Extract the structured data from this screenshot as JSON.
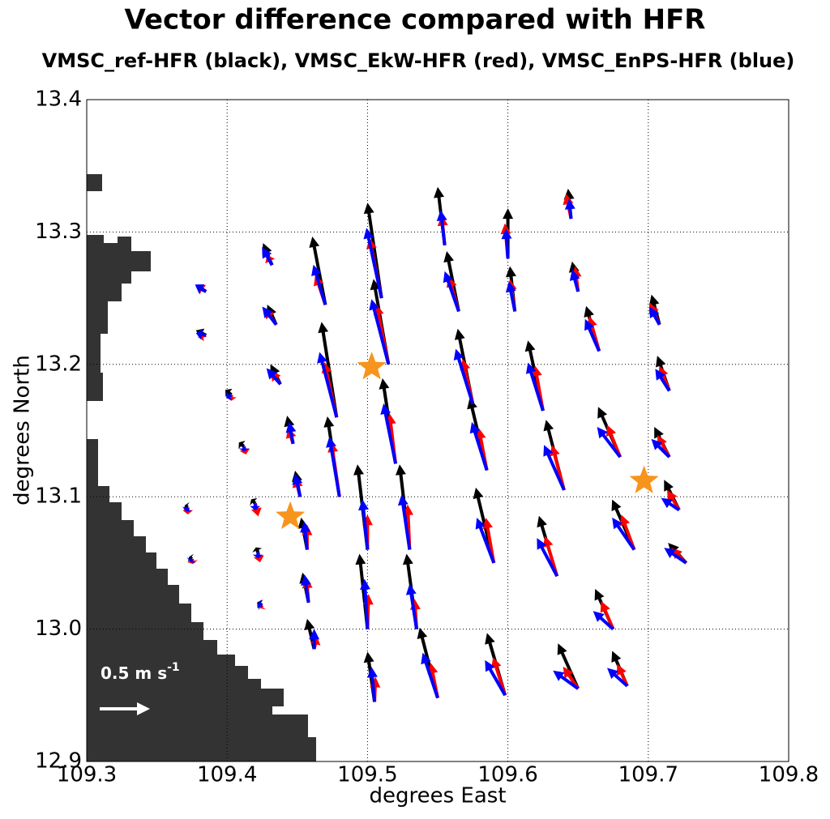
{
  "chart_data": {
    "type": "quiver",
    "title": "Vector difference compared with HFR",
    "subtitle": "VMSC_ref-HFR (black), VMSC_EkW-HFR (red), VMSC_EnPS-HFR (blue)",
    "xlabel": "degrees East",
    "ylabel": "degrees North",
    "xlim": [
      109.3,
      109.8
    ],
    "ylim": [
      12.9,
      13.4
    ],
    "xticks": [
      109.3,
      109.4,
      109.5,
      109.6,
      109.7,
      109.8
    ],
    "yticks": [
      12.9,
      {
        "value": 13,
        "label": "13.0"
      },
      13.1,
      13.2,
      13.3,
      13.4
    ],
    "grid": true,
    "reference": {
      "value": 0.5,
      "label": "0.5 m s",
      "label_sup": "-1",
      "color": "#ffffff"
    },
    "x": [
      109.385,
      109.385,
      109.403,
      109.412,
      109.372,
      109.375,
      109.42,
      109.422,
      109.425,
      109.432,
      109.435,
      109.438,
      109.447,
      109.452,
      109.457,
      109.458,
      109.462,
      109.47,
      109.478,
      109.48,
      109.5,
      109.5,
      109.505,
      109.51,
      109.515,
      109.52,
      109.53,
      109.535,
      109.55,
      109.555,
      109.565,
      109.575,
      109.585,
      109.59,
      109.598,
      109.6,
      109.605,
      109.625,
      109.64,
      109.635,
      109.65,
      109.645,
      109.65,
      109.665,
      109.68,
      109.69,
      109.675,
      109.685,
      109.708,
      109.715,
      109.715,
      109.722,
      109.727
    ],
    "y": [
      13.255,
      13.222,
      13.177,
      13.138,
      13.092,
      13.053,
      13.095,
      13.058,
      13.018,
      13.275,
      13.23,
      13.185,
      13.14,
      13.1,
      13.06,
      13.02,
      12.985,
      13.245,
      13.16,
      13.1,
      13.06,
      13.0,
      12.945,
      13.25,
      13.2,
      13.125,
      13.06,
      13.0,
      12.948,
      13.29,
      13.24,
      13.17,
      13.12,
      13.05,
      12.95,
      13.28,
      13.24,
      13.165,
      13.105,
      13.04,
      12.955,
      13.31,
      13.255,
      13.21,
      13.13,
      13.06,
      13.0,
      12.957,
      13.23,
      13.18,
      13.13,
      13.09,
      13.05
    ],
    "series": [
      {
        "color": "#000000",
        "u": [
          -0.1,
          -0.1,
          -0.06,
          -0.05,
          -0.03,
          -0.03,
          -0.04,
          -0.02,
          -0.05,
          -0.09,
          -0.09,
          -0.1,
          -0.06,
          -0.05,
          -0.06,
          -0.06,
          -0.07,
          -0.13,
          -0.15,
          -0.12,
          -0.1,
          -0.08,
          -0.07,
          -0.14,
          -0.15,
          -0.13,
          -0.1,
          -0.1,
          -0.18,
          -0.07,
          -0.12,
          -0.15,
          -0.17,
          -0.18,
          -0.18,
          0,
          -0.05,
          -0.15,
          -0.18,
          -0.18,
          -0.2,
          -0.03,
          -0.06,
          -0.13,
          -0.22,
          -0.22,
          -0.18,
          -0.15,
          -0.08,
          -0.12,
          -0.15,
          -0.15,
          -0.18
        ],
        "v": [
          0.05,
          0.05,
          0.05,
          0.04,
          0.02,
          0.02,
          0.04,
          0.05,
          0.03,
          0.22,
          0.2,
          0.2,
          0.28,
          0.26,
          0.32,
          0.3,
          0.3,
          0.68,
          0.95,
          0.8,
          0.85,
          0.75,
          0.5,
          0.95,
          0.85,
          0.85,
          0.85,
          0.75,
          0.7,
          0.58,
          0.6,
          0.75,
          0.72,
          0.75,
          0.62,
          0.5,
          0.45,
          0.7,
          0.7,
          0.6,
          0.45,
          0.3,
          0.3,
          0.45,
          0.5,
          0.5,
          0.4,
          0.35,
          0.3,
          0.35,
          0.3,
          0.3,
          0.2
        ]
      },
      {
        "color": "#ff0000",
        "u": [
          -0.08,
          -0.08,
          0,
          0.02,
          0,
          0.01,
          0.03,
          0.02,
          -0.02,
          -0.05,
          -0.12,
          -0.1,
          -0.05,
          -0.05,
          0,
          -0.02,
          0.03,
          -0.1,
          -0.12,
          -0.08,
          0,
          0.01,
          0.01,
          -0.12,
          -0.12,
          -0.06,
          -0.02,
          -0.02,
          -0.07,
          -0.03,
          -0.1,
          -0.1,
          -0.08,
          -0.08,
          -0.12,
          -0.03,
          -0.05,
          -0.08,
          -0.12,
          -0.12,
          -0.15,
          -0.05,
          -0.03,
          -0.1,
          -0.13,
          -0.13,
          -0.12,
          -0.1,
          -0.1,
          -0.1,
          -0.12,
          -0.12,
          -0.15
        ],
        "v": [
          0.06,
          -0.02,
          -0.06,
          -0.08,
          -0.07,
          -0.05,
          -0.13,
          -0.1,
          -0.03,
          0.1,
          0.17,
          0.14,
          0.16,
          0.2,
          0.25,
          0.25,
          0.12,
          0.3,
          0.55,
          0.55,
          0.35,
          0.35,
          0.25,
          0.6,
          0.6,
          0.5,
          0.45,
          0.3,
          0.35,
          0.3,
          0.35,
          0.45,
          0.42,
          0.45,
          0.38,
          0.35,
          0.32,
          0.45,
          0.45,
          0.4,
          0.22,
          0.25,
          0.25,
          0.35,
          0.32,
          0.35,
          0.28,
          0.22,
          0.22,
          0.25,
          0.22,
          0.2,
          0.15
        ]
      },
      {
        "color": "#0000ff",
        "u": [
          -0.11,
          -0.1,
          -0.05,
          0,
          -0.02,
          -0.02,
          0,
          0,
          -0.05,
          -0.1,
          -0.14,
          -0.14,
          -0.04,
          -0.05,
          -0.03,
          -0.04,
          0,
          -0.12,
          -0.17,
          -0.1,
          -0.05,
          -0.03,
          -0.03,
          -0.15,
          -0.17,
          -0.12,
          -0.08,
          -0.07,
          -0.15,
          -0.04,
          -0.14,
          -0.17,
          -0.15,
          -0.17,
          -0.2,
          -0.02,
          -0.06,
          -0.15,
          -0.2,
          -0.2,
          -0.25,
          -0.02,
          -0.06,
          -0.14,
          -0.23,
          -0.22,
          -0.2,
          -0.2,
          -0.1,
          -0.14,
          -0.18,
          -0.18,
          -0.22
        ],
        "v": [
          0.07,
          0.02,
          -0.03,
          -0.05,
          -0.04,
          -0.03,
          -0.07,
          -0.06,
          0.01,
          0.18,
          0.18,
          0.16,
          0.22,
          0.23,
          0.28,
          0.28,
          0.2,
          0.4,
          0.65,
          0.6,
          0.5,
          0.5,
          0.35,
          0.7,
          0.65,
          0.6,
          0.55,
          0.45,
          0.45,
          0.35,
          0.4,
          0.55,
          0.48,
          0.45,
          0.35,
          0.3,
          0.3,
          0.48,
          0.45,
          0.38,
          0.18,
          0.2,
          0.22,
          0.32,
          0.3,
          0.32,
          0.18,
          0.18,
          0.18,
          0.22,
          0.18,
          0.12,
          0.15
        ]
      }
    ],
    "markers": {
      "color": "#f7941d",
      "x": [
        109.445,
        109.503,
        109.697
      ],
      "y": [
        13.085,
        13.198,
        13.112
      ]
    }
  }
}
